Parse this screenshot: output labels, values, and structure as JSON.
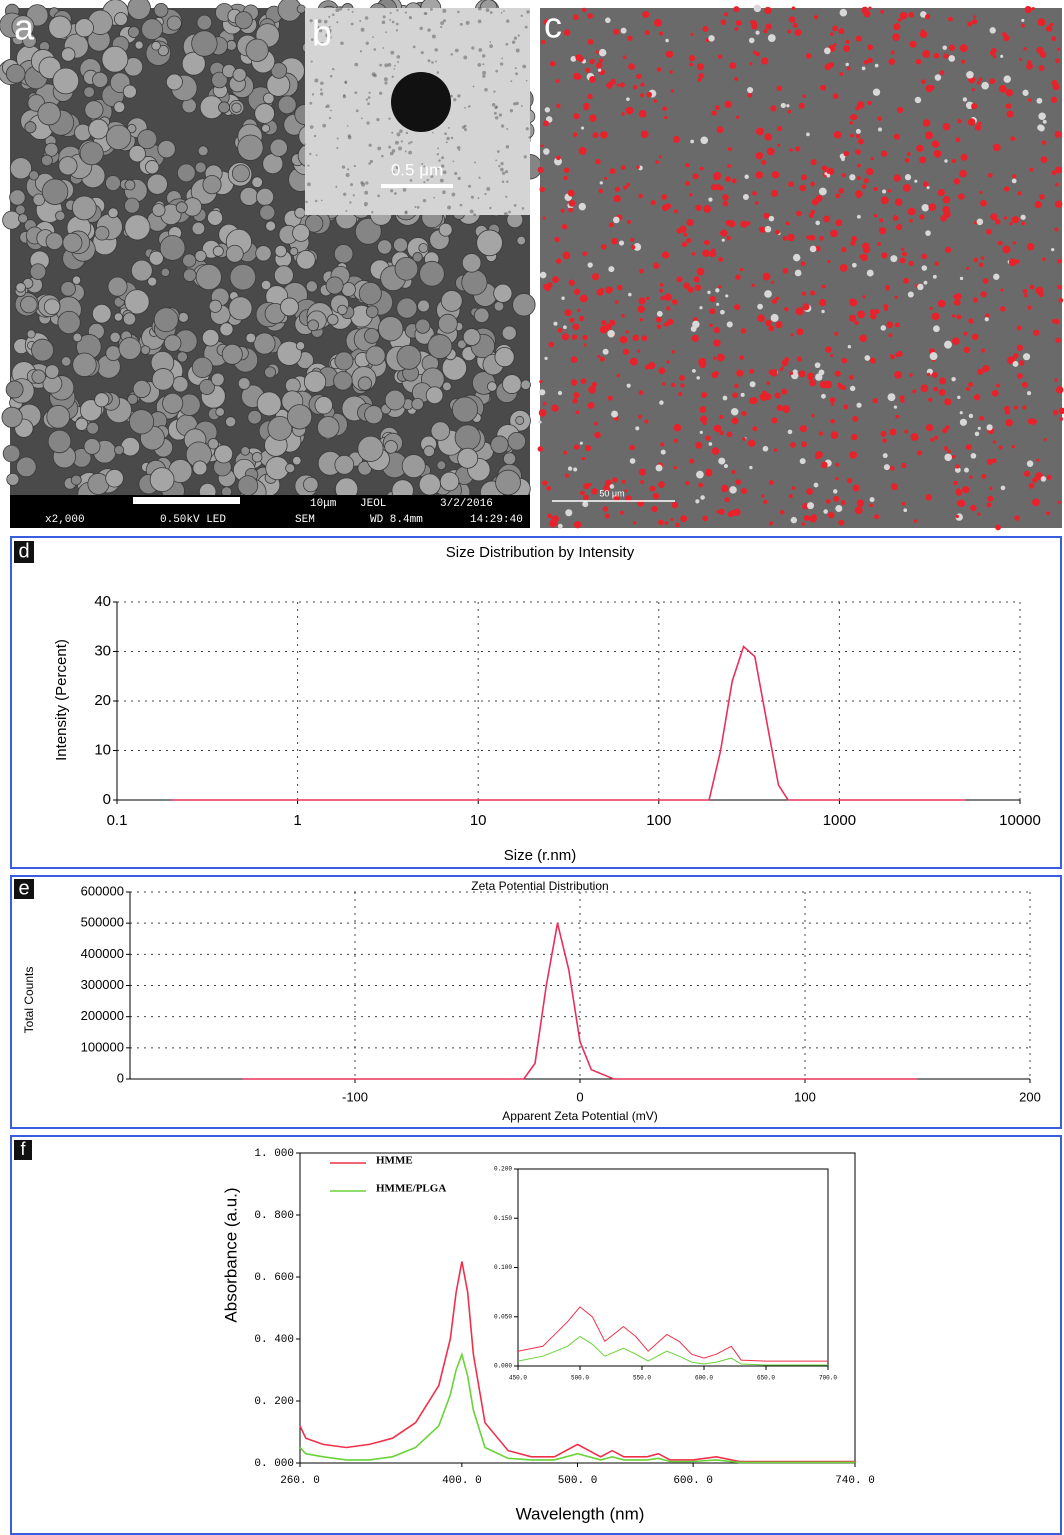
{
  "panel_labels": [
    "a",
    "b",
    "c",
    "d",
    "e",
    "f"
  ],
  "sem_info": {
    "scale": "10μm",
    "maker": "JEOL",
    "date": "3/2/2016",
    "magnification": "x2,000",
    "voltage": "0.50kV LED",
    "mode": "SEM",
    "working_distance": "WD 8.4mm",
    "time": "14:29:40"
  },
  "tem_scale": "0.5 μm",
  "confocal_scale": "50 μm",
  "chart_data": [
    {
      "type": "line",
      "title": "Size Distribution by Intensity",
      "x_label": "Size (r.nm)",
      "y_label": "Intensity (Percent)",
      "x_scale": "log",
      "xlim": [
        0.1,
        10000
      ],
      "xticks": [
        0.1,
        1,
        10,
        100,
        1000,
        10000
      ],
      "ylim": [
        0,
        40
      ],
      "yticks": [
        0,
        10,
        20,
        30,
        40
      ],
      "grid": true,
      "series": [
        {
          "color": "#e8305a",
          "x": [
            0.2,
            190,
            220,
            255,
            295,
            340,
            400,
            460,
            520,
            5000
          ],
          "values": [
            0,
            0,
            10,
            24,
            31,
            29,
            15,
            3,
            0,
            0
          ]
        }
      ]
    },
    {
      "type": "line",
      "title": "Zeta Potential Distribution",
      "x_label": "Apparent Zeta Potential (mV)",
      "y_label": "Total Counts",
      "xlim": [
        -200,
        200
      ],
      "xticks": [
        -100,
        0,
        100,
        200
      ],
      "ylim": [
        0,
        600000
      ],
      "yticks": [
        0,
        100000,
        200000,
        300000,
        400000,
        500000,
        600000
      ],
      "grid": true,
      "series": [
        {
          "color": "#e8305a",
          "x": [
            -150,
            -25,
            -20,
            -15,
            -10,
            -5,
            0,
            5,
            15,
            150
          ],
          "values": [
            0,
            0,
            50000,
            300000,
            500000,
            350000,
            120000,
            30000,
            0,
            0
          ]
        }
      ]
    },
    {
      "type": "line",
      "x_label": "Wavelength (nm)",
      "y_label": "Absorbance (a.u.)",
      "legend": "upper left",
      "frame": true,
      "xlim": [
        260,
        740
      ],
      "xticks": [
        {
          "value": 260,
          "label": "260. 0"
        },
        {
          "value": 400,
          "label": "400. 0"
        },
        {
          "value": 500,
          "label": "500. 0"
        },
        {
          "value": 600,
          "label": "600. 0"
        },
        {
          "value": 740,
          "label": "740. 0"
        }
      ],
      "ylim": [
        0,
        1
      ],
      "yticks": [
        {
          "value": 0,
          "label": "0. 000"
        },
        {
          "value": 0.2,
          "label": "0. 200"
        },
        {
          "value": 0.4,
          "label": "0. 400"
        },
        {
          "value": 0.6,
          "label": "0. 600"
        },
        {
          "value": 0.8,
          "label": "0. 800"
        },
        {
          "value": 1,
          "label": "1. 000"
        }
      ],
      "series": [
        {
          "name": "HMME",
          "color": "#f0304a",
          "x": [
            260,
            265,
            280,
            300,
            320,
            340,
            360,
            380,
            390,
            395,
            400,
            405,
            410,
            420,
            440,
            460,
            480,
            500,
            520,
            530,
            540,
            560,
            570,
            580,
            600,
            620,
            640,
            700,
            740
          ],
          "values": [
            0.12,
            0.08,
            0.06,
            0.05,
            0.06,
            0.08,
            0.13,
            0.25,
            0.4,
            0.55,
            0.65,
            0.55,
            0.35,
            0.13,
            0.04,
            0.02,
            0.02,
            0.06,
            0.02,
            0.04,
            0.02,
            0.02,
            0.03,
            0.01,
            0.01,
            0.02,
            0.005,
            0.005,
            0.005
          ]
        },
        {
          "name": "HMME/PLGA",
          "color": "#6ad23a",
          "x": [
            260,
            265,
            280,
            300,
            320,
            340,
            360,
            380,
            390,
            395,
            400,
            405,
            410,
            420,
            440,
            460,
            480,
            500,
            520,
            530,
            540,
            560,
            570,
            580,
            600,
            620,
            640,
            700,
            740
          ],
          "values": [
            0.05,
            0.03,
            0.02,
            0.01,
            0.01,
            0.02,
            0.05,
            0.12,
            0.22,
            0.3,
            0.35,
            0.28,
            0.17,
            0.05,
            0.015,
            0.01,
            0.01,
            0.03,
            0.01,
            0.02,
            0.01,
            0.01,
            0.015,
            0.005,
            0.005,
            0.01,
            0.002,
            0.002,
            0.002
          ]
        }
      ]
    },
    {
      "type": "line",
      "frame": true,
      "xlim": [
        450,
        700
      ],
      "xticks": [
        {
          "value": 450,
          "label": "450.0"
        },
        {
          "value": 500,
          "label": "500.0"
        },
        {
          "value": 550,
          "label": "550.0"
        },
        {
          "value": 600,
          "label": "600.0"
        },
        {
          "value": 650,
          "label": "650.0"
        },
        {
          "value": 700,
          "label": "700.0"
        }
      ],
      "ylim": [
        0,
        0.2
      ],
      "yticks": [
        {
          "value": 0,
          "label": "0.000"
        },
        {
          "value": 0.05,
          "label": "0.050"
        },
        {
          "value": 0.1,
          "label": "0.100"
        },
        {
          "value": 0.15,
          "label": "0.150"
        },
        {
          "value": 0.2,
          "label": "0.200"
        }
      ],
      "series": [
        {
          "color": "#f0304a",
          "x": [
            450,
            470,
            490,
            500,
            510,
            520,
            535,
            545,
            555,
            570,
            580,
            590,
            600,
            610,
            622,
            630,
            650,
            700
          ],
          "values": [
            0.015,
            0.02,
            0.045,
            0.06,
            0.05,
            0.025,
            0.04,
            0.03,
            0.015,
            0.032,
            0.025,
            0.012,
            0.008,
            0.012,
            0.02,
            0.006,
            0.005,
            0.005
          ]
        },
        {
          "color": "#6ad23a",
          "x": [
            450,
            470,
            490,
            500,
            510,
            520,
            535,
            545,
            555,
            570,
            580,
            590,
            600,
            610,
            622,
            630,
            650,
            700
          ],
          "values": [
            0.005,
            0.01,
            0.02,
            0.03,
            0.022,
            0.01,
            0.018,
            0.012,
            0.005,
            0.015,
            0.01,
            0.004,
            0.002,
            0.004,
            0.008,
            0.002,
            0.001,
            0.001
          ]
        }
      ]
    }
  ]
}
